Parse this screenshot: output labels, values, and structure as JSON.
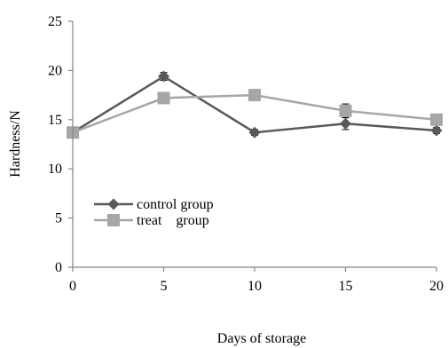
{
  "chart_data": {
    "type": "line",
    "title": "",
    "xlabel": "Days of storage",
    "ylabel": "Hardness/N",
    "x": [
      0,
      5,
      10,
      15,
      20
    ],
    "xticks": [
      "0",
      "5",
      "10",
      "15",
      "20"
    ],
    "yticks": [
      "0",
      "5",
      "10",
      "15",
      "20",
      "25"
    ],
    "xlim": [
      0,
      20
    ],
    "ylim": [
      0,
      25
    ],
    "grid": false,
    "legend_position": "left-middle",
    "series": [
      {
        "name": "control group",
        "marker": "diamond",
        "color": "#595959",
        "values": [
          13.7,
          19.4,
          13.7,
          14.6,
          13.9
        ],
        "errors": [
          0.3,
          0.4,
          0.3,
          0.6,
          0.3
        ]
      },
      {
        "name": "treat    group",
        "marker": "square",
        "color": "#a6a6a6",
        "values": [
          13.7,
          17.2,
          17.5,
          15.9,
          15.0
        ],
        "errors": [
          0.3,
          0.3,
          0.3,
          0.7,
          0.3
        ]
      }
    ]
  }
}
